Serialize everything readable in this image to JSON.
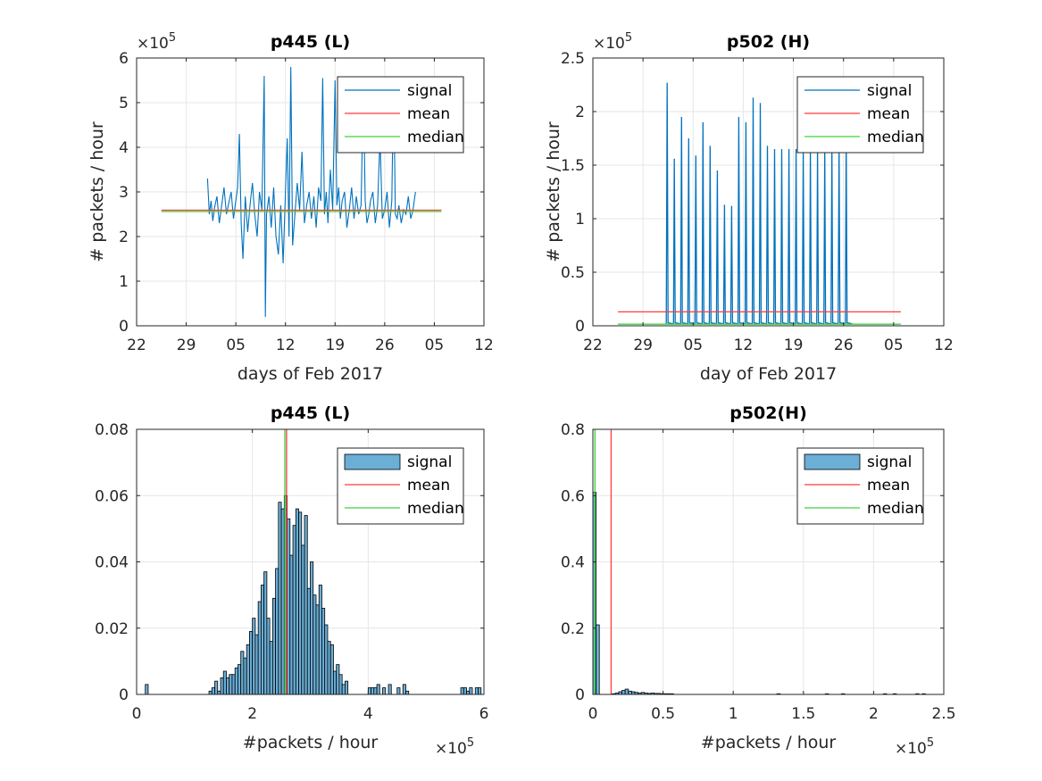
{
  "colors": {
    "signal_line": "#0072BD",
    "signal_fill": "#6BAED6",
    "mean": "#FF3B3B",
    "median": "#3CD43C",
    "grid": "#E6E6E6",
    "axis": "#262626"
  },
  "chart_data": [
    {
      "id": "p445_ts",
      "type": "line",
      "title": "p445 (L)",
      "xlabel": "days of Feb 2017",
      "ylabel": "# packets / hour",
      "y_exponent_label": "×10",
      "y_exponent": "5",
      "x_is_date": true,
      "xlim": [
        "2017-01-22",
        "2017-03-12"
      ],
      "ylim": [
        0,
        600000
      ],
      "x_ticks": [
        "2017-01-22",
        "2017-01-29",
        "2017-02-05",
        "2017-02-12",
        "2017-02-19",
        "2017-02-26",
        "2017-03-05",
        "2017-03-12"
      ],
      "x_tick_labels": [
        "22",
        "29",
        "05",
        "12",
        "19",
        "26",
        "05",
        "12"
      ],
      "y_ticks": [
        0,
        100000,
        200000,
        300000,
        400000,
        500000,
        600000
      ],
      "y_tick_labels": [
        "0",
        "1",
        "2",
        "3",
        "4",
        "5",
        "6"
      ],
      "grid": true,
      "legend": "top-right",
      "series": [
        {
          "name": "signal",
          "style": "line",
          "points": [
            [
              "2017-02-01 00:00",
              330000
            ],
            [
              "2017-02-01 06:00",
              250000
            ],
            [
              "2017-02-01 12:00",
              280000
            ],
            [
              "2017-02-01 18:00",
              235000
            ],
            [
              "2017-02-02 00:00",
              265000
            ],
            [
              "2017-02-02 08:00",
              290000
            ],
            [
              "2017-02-02 16:00",
              230000
            ],
            [
              "2017-02-03 00:00",
              270000
            ],
            [
              "2017-02-03 08:00",
              310000
            ],
            [
              "2017-02-03 16:00",
              250000
            ],
            [
              "2017-02-04 00:00",
              275000
            ],
            [
              "2017-02-04 08:00",
              300000
            ],
            [
              "2017-02-04 16:00",
              240000
            ],
            [
              "2017-02-05 00:00",
              280000
            ],
            [
              "2017-02-05 06:00",
              310000
            ],
            [
              "2017-02-05 12:00",
              430000
            ],
            [
              "2017-02-05 18:00",
              230000
            ],
            [
              "2017-02-06 00:00",
              150000
            ],
            [
              "2017-02-06 08:00",
              290000
            ],
            [
              "2017-02-06 16:00",
              210000
            ],
            [
              "2017-02-07 00:00",
              270000
            ],
            [
              "2017-02-07 08:00",
              320000
            ],
            [
              "2017-02-07 16:00",
              250000
            ],
            [
              "2017-02-08 00:00",
              200000
            ],
            [
              "2017-02-08 08:00",
              300000
            ],
            [
              "2017-02-08 16:00",
              260000
            ],
            [
              "2017-02-09 00:00",
              560000
            ],
            [
              "2017-02-09 04:00",
              20000
            ],
            [
              "2017-02-09 08:00",
              250000
            ],
            [
              "2017-02-09 16:00",
              290000
            ],
            [
              "2017-02-10 00:00",
              220000
            ],
            [
              "2017-02-10 08:00",
              310000
            ],
            [
              "2017-02-10 16:00",
              200000
            ],
            [
              "2017-02-11 00:00",
              160000
            ],
            [
              "2017-02-11 08:00",
              270000
            ],
            [
              "2017-02-11 16:00",
              140000
            ],
            [
              "2017-02-12 00:00",
              300000
            ],
            [
              "2017-02-12 06:00",
              420000
            ],
            [
              "2017-02-12 12:00",
              200000
            ],
            [
              "2017-02-12 18:00",
              580000
            ],
            [
              "2017-02-13 00:00",
              180000
            ],
            [
              "2017-02-13 08:00",
              250000
            ],
            [
              "2017-02-13 16:00",
              320000
            ],
            [
              "2017-02-14 00:00",
              260000
            ],
            [
              "2017-02-14 08:00",
              390000
            ],
            [
              "2017-02-14 16:00",
              230000
            ],
            [
              "2017-02-15 00:00",
              270000
            ],
            [
              "2017-02-15 08:00",
              300000
            ],
            [
              "2017-02-15 16:00",
              240000
            ],
            [
              "2017-02-16 00:00",
              290000
            ],
            [
              "2017-02-16 08:00",
              220000
            ],
            [
              "2017-02-16 16:00",
              310000
            ],
            [
              "2017-02-17 00:00",
              280000
            ],
            [
              "2017-02-17 06:00",
              555000
            ],
            [
              "2017-02-17 12:00",
              250000
            ],
            [
              "2017-02-17 18:00",
              300000
            ],
            [
              "2017-02-18 00:00",
              230000
            ],
            [
              "2017-02-18 08:00",
              350000
            ],
            [
              "2017-02-18 16:00",
              260000
            ],
            [
              "2017-02-19 00:00",
              550000
            ],
            [
              "2017-02-19 06:00",
              270000
            ],
            [
              "2017-02-19 12:00",
              310000
            ],
            [
              "2017-02-19 18:00",
              240000
            ],
            [
              "2017-02-20 00:00",
              280000
            ],
            [
              "2017-02-20 08:00",
              300000
            ],
            [
              "2017-02-20 16:00",
              220000
            ],
            [
              "2017-02-21 00:00",
              260000
            ],
            [
              "2017-02-21 08:00",
              310000
            ],
            [
              "2017-02-21 16:00",
              240000
            ],
            [
              "2017-02-22 00:00",
              290000
            ],
            [
              "2017-02-22 08:00",
              250000
            ],
            [
              "2017-02-22 16:00",
              270000
            ],
            [
              "2017-02-23 00:00",
              540000
            ],
            [
              "2017-02-23 06:00",
              280000
            ],
            [
              "2017-02-23 12:00",
              230000
            ],
            [
              "2017-02-23 18:00",
              250000
            ],
            [
              "2017-02-24 00:00",
              280000
            ],
            [
              "2017-02-24 08:00",
              300000
            ],
            [
              "2017-02-24 16:00",
              230000
            ],
            [
              "2017-02-25 00:00",
              270000
            ],
            [
              "2017-02-25 08:00",
              420000
            ],
            [
              "2017-02-25 16:00",
              240000
            ],
            [
              "2017-02-26 00:00",
              260000
            ],
            [
              "2017-02-26 08:00",
              300000
            ],
            [
              "2017-02-26 16:00",
              220000
            ],
            [
              "2017-02-27 00:00",
              280000
            ],
            [
              "2017-02-27 06:00",
              550000
            ],
            [
              "2017-02-27 12:00",
              250000
            ],
            [
              "2017-02-27 18:00",
              240000
            ],
            [
              "2017-02-28 00:00",
              270000
            ],
            [
              "2017-02-28 08:00",
              230000
            ],
            [
              "2017-02-28 16:00",
              260000
            ],
            [
              "2017-03-01 00:00",
              250000
            ],
            [
              "2017-03-01 08:00",
              290000
            ],
            [
              "2017-03-01 16:00",
              240000
            ],
            [
              "2017-03-02 00:00",
              260000
            ],
            [
              "2017-03-02 08:00",
              300000
            ]
          ]
        },
        {
          "name": "mean",
          "style": "hline",
          "value": 259000,
          "x_range": [
            "2017-01-25 12:00",
            "2017-03-06"
          ]
        },
        {
          "name": "median",
          "style": "hline",
          "value": 256000,
          "x_range": [
            "2017-01-25 12:00",
            "2017-03-06"
          ]
        }
      ]
    },
    {
      "id": "p502_ts",
      "type": "line",
      "title": "p502 (H)",
      "xlabel": "day of Feb 2017",
      "ylabel": "# packets / hour",
      "y_exponent_label": "×10",
      "y_exponent": "5",
      "x_is_date": true,
      "xlim": [
        "2017-01-22",
        "2017-03-12"
      ],
      "ylim": [
        0,
        250000
      ],
      "x_ticks": [
        "2017-01-22",
        "2017-01-29",
        "2017-02-05",
        "2017-02-12",
        "2017-02-19",
        "2017-02-26",
        "2017-03-05",
        "2017-03-12"
      ],
      "x_tick_labels": [
        "22",
        "29",
        "05",
        "12",
        "19",
        "26",
        "05",
        "12"
      ],
      "y_ticks": [
        0,
        50000,
        100000,
        150000,
        200000,
        250000
      ],
      "y_tick_labels": [
        "0",
        "0.5",
        "1",
        "1.5",
        "2",
        "2.5"
      ],
      "grid": true,
      "legend": "top-right",
      "series": [
        {
          "name": "signal",
          "style": "daily_spikes",
          "baseline": 2000,
          "spikes": [
            [
              "2017-02-01 09:00",
              227000
            ],
            [
              "2017-02-02 09:00",
              156000
            ],
            [
              "2017-02-03 09:00",
              195000
            ],
            [
              "2017-02-04 09:00",
              175000
            ],
            [
              "2017-02-05 09:00",
              159000
            ],
            [
              "2017-02-06 09:00",
              190000
            ],
            [
              "2017-02-07 09:00",
              168000
            ],
            [
              "2017-02-08 09:00",
              145000
            ],
            [
              "2017-02-09 09:00",
              113000
            ],
            [
              "2017-02-10 09:00",
              112000
            ],
            [
              "2017-02-11 09:00",
              195000
            ],
            [
              "2017-02-12 09:00",
              190000
            ],
            [
              "2017-02-13 09:00",
              213000
            ],
            [
              "2017-02-14 09:00",
              208000
            ],
            [
              "2017-02-15 09:00",
              168000
            ],
            [
              "2017-02-16 09:00",
              165000
            ],
            [
              "2017-02-17 09:00",
              165000
            ],
            [
              "2017-02-18 09:00",
              165000
            ],
            [
              "2017-02-19 09:00",
              165000
            ],
            [
              "2017-02-20 09:00",
              165000
            ],
            [
              "2017-02-21 09:00",
              165000
            ],
            [
              "2017-02-22 09:00",
              165000
            ],
            [
              "2017-02-23 09:00",
              165000
            ],
            [
              "2017-02-24 09:00",
              165000
            ],
            [
              "2017-02-25 09:00",
              165000
            ],
            [
              "2017-02-26 09:00",
              175000
            ]
          ]
        },
        {
          "name": "mean",
          "style": "hline",
          "value": 13000,
          "x_range": [
            "2017-01-25 12:00",
            "2017-03-06"
          ]
        },
        {
          "name": "median",
          "style": "hline",
          "value": 1500,
          "x_range": [
            "2017-01-25 12:00",
            "2017-03-06"
          ]
        }
      ]
    },
    {
      "id": "p445_hist",
      "type": "bar",
      "title": "p445 (L)",
      "xlabel": "#packets / hour",
      "ylabel": "",
      "x_exponent_label": "×10",
      "x_exponent": "5",
      "xlim": [
        0,
        600000
      ],
      "ylim": [
        0,
        0.08
      ],
      "x_ticks": [
        0,
        200000,
        400000,
        600000
      ],
      "x_tick_labels": [
        "0",
        "2",
        "4",
        "6"
      ],
      "y_ticks": [
        0,
        0.02,
        0.04,
        0.06,
        0.08
      ],
      "y_tick_labels": [
        "0",
        "0.02",
        "0.04",
        "0.06",
        "0.08"
      ],
      "grid": true,
      "legend": "top-right",
      "bin_start": 0,
      "bin_width": 5000,
      "series": [
        {
          "name": "signal",
          "style": "histogram",
          "values": [
            0,
            0,
            0,
            0.003,
            0,
            0,
            0,
            0,
            0,
            0,
            0,
            0,
            0,
            0,
            0,
            0,
            0,
            0,
            0,
            0,
            0,
            0,
            0,
            0,
            0,
            0.001,
            0.002,
            0.004,
            0.001,
            0.005,
            0.007,
            0.005,
            0.006,
            0.006,
            0.008,
            0.009,
            0.013,
            0.011,
            0.015,
            0.019,
            0.023,
            0.018,
            0.028,
            0.033,
            0.037,
            0.023,
            0.016,
            0.029,
            0.038,
            0.058,
            0.056,
            0.06,
            0.053,
            0.042,
            0.051,
            0.056,
            0.055,
            0.045,
            0.054,
            0.032,
            0.04,
            0.03,
            0.027,
            0.033,
            0.026,
            0.021,
            0.016,
            0.015,
            0.007,
            0.009,
            0.006,
            0.003,
            0.004,
            0,
            0,
            0,
            0,
            0,
            0,
            0,
            0.002,
            0.002,
            0.002,
            0.003,
            0,
            0.002,
            0,
            0.003,
            0,
            0,
            0.002,
            0,
            0.003,
            0.001,
            0,
            0,
            0,
            0,
            0,
            0,
            0,
            0,
            0,
            0,
            0,
            0,
            0,
            0,
            0,
            0,
            0,
            0,
            0.002,
            0.002,
            0.001,
            0.002,
            0,
            0.002,
            0.002,
            0
          ]
        },
        {
          "name": "mean",
          "style": "vline",
          "value": 259000
        },
        {
          "name": "median",
          "style": "vline",
          "value": 256000
        }
      ]
    },
    {
      "id": "p502_hist",
      "type": "bar",
      "title": "p502(H)",
      "xlabel": "#packets / hour",
      "ylabel": "",
      "x_exponent_label": "×10",
      "x_exponent": "5",
      "xlim": [
        0,
        250000
      ],
      "ylim": [
        0,
        0.8
      ],
      "x_ticks": [
        0,
        50000,
        100000,
        150000,
        200000,
        250000
      ],
      "x_tick_labels": [
        "0",
        "0.5",
        "1",
        "1.5",
        "2",
        "2.5"
      ],
      "y_ticks": [
        0,
        0.2,
        0.4,
        0.6,
        0.8
      ],
      "y_tick_labels": [
        "0",
        "0.2",
        "0.4",
        "0.6",
        "0.8"
      ],
      "grid": true,
      "legend": "top-right",
      "bin_start": 0,
      "bin_width": 2300,
      "series": [
        {
          "name": "signal",
          "style": "histogram",
          "values": [
            0.61,
            0.21,
            0,
            0,
            0,
            0,
            0.002,
            0.004,
            0.008,
            0.012,
            0.016,
            0.01,
            0.008,
            0.006,
            0.004,
            0.006,
            0.004,
            0.003,
            0.004,
            0.003,
            0.003,
            0.002,
            0.002,
            0.002,
            0.002,
            0,
            0,
            0,
            0,
            0,
            0,
            0,
            0,
            0,
            0,
            0,
            0,
            0,
            0,
            0,
            0,
            0,
            0,
            0,
            0,
            0,
            0,
            0,
            0,
            0,
            0,
            0,
            0,
            0,
            0,
            0,
            0,
            0.002,
            0,
            0,
            0,
            0,
            0,
            0,
            0,
            0,
            0,
            0,
            0,
            0,
            0,
            0,
            0.002,
            0,
            0,
            0,
            0,
            0.002,
            0,
            0,
            0,
            0,
            0,
            0,
            0,
            0,
            0,
            0,
            0,
            0,
            0.002,
            0,
            0,
            0.002,
            0,
            0,
            0,
            0,
            0,
            0,
            0.002,
            0,
            0.002
          ]
        },
        {
          "name": "mean",
          "style": "vline",
          "value": 13000
        },
        {
          "name": "median",
          "style": "vline",
          "value": 1500
        }
      ]
    }
  ]
}
